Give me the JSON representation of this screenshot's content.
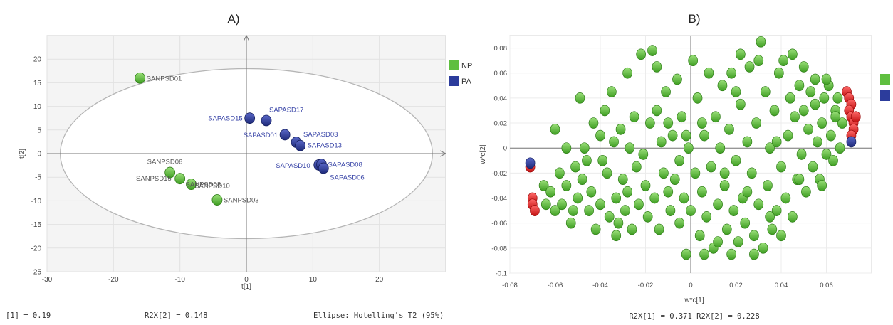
{
  "panels": {
    "a": {
      "label": "A)",
      "footer_left": "[1] = 0.19",
      "footer_mid": "R2X[2] = 0.148",
      "footer_right": "Ellipse: Hotelling's T2 (95%)"
    },
    "b": {
      "label": "B)",
      "footer": "R2X[1] = 0.371 R2X[2] = 0.228"
    }
  },
  "chart_data": [
    {
      "type": "scatter",
      "title": "",
      "xlabel": "t[1]",
      "ylabel": "t[2]",
      "xlim": [
        -30,
        30
      ],
      "ylim": [
        -25,
        25
      ],
      "xticks": [
        -30,
        -20,
        -10,
        0,
        10,
        20
      ],
      "yticks": [
        -25,
        -20,
        -15,
        -10,
        -5,
        0,
        5,
        10,
        15,
        20
      ],
      "x_tick_labels": [
        "-30",
        "-20",
        "-10",
        "0",
        "10",
        "20"
      ],
      "y_tick_labels": [
        "-25",
        "-20",
        "-15",
        "-10",
        "-5",
        "0",
        "5",
        "10",
        "15",
        "20"
      ],
      "grid": true,
      "legend_position": "top-right",
      "ellipse": {
        "center": [
          0,
          0
        ],
        "semi_axis_x": 28,
        "semi_axis_y": 18
      },
      "series": [
        {
          "name": "NP",
          "color": "#5fbf3f",
          "points": [
            {
              "x": -16,
              "y": 16,
              "label": "SANPSD01"
            },
            {
              "x": -11.5,
              "y": -4,
              "label": "SANPSD06"
            },
            {
              "x": -10,
              "y": -5.3,
              "label": "SANPSD15"
            },
            {
              "x": -8.3,
              "y": -6.5,
              "label": "SANPSD08"
            },
            {
              "x": -4.4,
              "y": -9.8,
              "label": "SANPSD03"
            }
          ]
        },
        {
          "name": "PA",
          "color": "#2c3c9c",
          "points": [
            {
              "x": 0.5,
              "y": 7.5,
              "label": "SAPASD15"
            },
            {
              "x": 3,
              "y": 7,
              "label": "SAPASD17"
            },
            {
              "x": 5.8,
              "y": 4,
              "label": "SAPASD01"
            },
            {
              "x": 7.5,
              "y": 2.4,
              "label": "SAPASD03"
            },
            {
              "x": 8.1,
              "y": 1.7,
              "label": "SAPASD13"
            },
            {
              "x": 10.9,
              "y": -2.4,
              "label": "SAPASD10"
            },
            {
              "x": 11.3,
              "y": -2.3,
              "label": "SAPASD08"
            },
            {
              "x": 11.6,
              "y": -3.1,
              "label": "SAPASD06"
            }
          ]
        }
      ],
      "extra_labels": [
        {
          "text": "SANPSD10",
          "x": -7.8,
          "y": -5.5
        }
      ]
    },
    {
      "type": "scatter",
      "title": "",
      "xlabel": "w*c[1]",
      "ylabel": "w*c[2]",
      "xlim": [
        -0.08,
        0.08
      ],
      "ylim": [
        -0.1,
        0.09
      ],
      "xticks": [
        -0.08,
        -0.06,
        -0.04,
        -0.02,
        0,
        0.02,
        0.04,
        0.06
      ],
      "yticks": [
        -0.1,
        -0.08,
        -0.06,
        -0.04,
        -0.02,
        0,
        0.02,
        0.04,
        0.06,
        0.08
      ],
      "x_tick_labels": [
        "-0.08",
        "-0.06",
        "-0.04",
        "-0.02",
        "0",
        "0.02",
        "0.04",
        "0.06"
      ],
      "y_tick_labels": [
        "-0.1",
        "-0.08",
        "-0.06",
        "-0.04",
        "-0.02",
        "0",
        "0.02",
        "0.04",
        "0.06",
        "0.08"
      ],
      "grid": true,
      "legend_position": "top-right",
      "legend_swatches": [
        "#5fbf3f",
        "#2c3c9c"
      ],
      "series": [
        {
          "name": "",
          "color": "#5fbf3f",
          "points": [
            [
              -0.065,
              -0.03
            ],
            [
              -0.064,
              -0.045
            ],
            [
              -0.062,
              -0.035
            ],
            [
              -0.06,
              -0.05
            ],
            [
              -0.058,
              -0.02
            ],
            [
              -0.057,
              -0.045
            ],
            [
              -0.055,
              -0.03
            ],
            [
              -0.055,
              0.0
            ],
            [
              -0.052,
              -0.05
            ],
            [
              -0.051,
              -0.015
            ],
            [
              -0.05,
              -0.04
            ],
            [
              -0.049,
              0.04
            ],
            [
              -0.048,
              -0.025
            ],
            [
              -0.047,
              0.0
            ],
            [
              -0.045,
              -0.05
            ],
            [
              -0.044,
              -0.035
            ],
            [
              -0.043,
              0.02
            ],
            [
              -0.042,
              -0.065
            ],
            [
              -0.04,
              -0.045
            ],
            [
              -0.039,
              -0.01
            ],
            [
              -0.038,
              0.03
            ],
            [
              -0.037,
              -0.02
            ],
            [
              -0.036,
              -0.055
            ],
            [
              -0.034,
              0.005
            ],
            [
              -0.033,
              -0.04
            ],
            [
              -0.032,
              -0.06
            ],
            [
              -0.031,
              0.015
            ],
            [
              -0.03,
              -0.025
            ],
            [
              -0.029,
              -0.05
            ],
            [
              -0.028,
              -0.035
            ],
            [
              -0.027,
              0.0
            ],
            [
              -0.026,
              -0.065
            ],
            [
              -0.025,
              0.025
            ],
            [
              -0.024,
              -0.015
            ],
            [
              -0.023,
              -0.045
            ],
            [
              -0.022,
              0.075
            ],
            [
              -0.021,
              -0.005
            ],
            [
              -0.02,
              -0.03
            ],
            [
              -0.019,
              -0.055
            ],
            [
              -0.018,
              0.02
            ],
            [
              -0.017,
              0.078
            ],
            [
              -0.016,
              -0.04
            ],
            [
              -0.015,
              0.03
            ],
            [
              -0.014,
              -0.065
            ],
            [
              -0.013,
              0.005
            ],
            [
              -0.012,
              -0.02
            ],
            [
              -0.011,
              0.045
            ],
            [
              -0.01,
              -0.035
            ],
            [
              -0.009,
              -0.05
            ],
            [
              -0.008,
              0.01
            ],
            [
              -0.007,
              -0.025
            ],
            [
              -0.006,
              0.055
            ],
            [
              -0.005,
              -0.01
            ],
            [
              -0.005,
              -0.06
            ],
            [
              -0.004,
              0.025
            ],
            [
              -0.003,
              -0.04
            ],
            [
              -0.002,
              -0.085
            ],
            [
              -0.001,
              0.0
            ],
            [
              0.0,
              -0.05
            ],
            [
              0.001,
              0.07
            ],
            [
              0.002,
              -0.02
            ],
            [
              0.003,
              0.04
            ],
            [
              0.004,
              -0.07
            ],
            [
              0.005,
              -0.035
            ],
            [
              0.006,
              0.01
            ],
            [
              0.007,
              -0.055
            ],
            [
              0.008,
              0.06
            ],
            [
              0.009,
              -0.015
            ],
            [
              0.01,
              -0.08
            ],
            [
              0.011,
              0.025
            ],
            [
              0.012,
              -0.045
            ],
            [
              0.013,
              0.0
            ],
            [
              0.014,
              0.05
            ],
            [
              0.015,
              -0.03
            ],
            [
              0.016,
              -0.065
            ],
            [
              0.017,
              0.015
            ],
            [
              0.018,
              0.06
            ],
            [
              0.019,
              -0.05
            ],
            [
              0.02,
              -0.01
            ],
            [
              0.021,
              -0.075
            ],
            [
              0.022,
              0.035
            ],
            [
              0.023,
              -0.04
            ],
            [
              0.024,
              -0.06
            ],
            [
              0.025,
              0.005
            ],
            [
              0.026,
              0.065
            ],
            [
              0.027,
              -0.02
            ],
            [
              0.028,
              -0.07
            ],
            [
              0.029,
              0.02
            ],
            [
              0.03,
              -0.045
            ],
            [
              0.031,
              0.085
            ],
            [
              0.032,
              -0.08
            ],
            [
              0.033,
              0.045
            ],
            [
              0.034,
              -0.03
            ],
            [
              0.035,
              0.0
            ],
            [
              0.036,
              -0.065
            ],
            [
              0.037,
              0.03
            ],
            [
              0.038,
              -0.05
            ],
            [
              0.039,
              0.06
            ],
            [
              0.04,
              -0.015
            ],
            [
              0.041,
              0.07
            ],
            [
              0.042,
              -0.04
            ],
            [
              0.043,
              0.01
            ],
            [
              0.044,
              0.04
            ],
            [
              0.045,
              -0.055
            ],
            [
              0.046,
              0.025
            ],
            [
              0.047,
              -0.025
            ],
            [
              0.048,
              0.05
            ],
            [
              0.049,
              -0.005
            ],
            [
              0.05,
              0.03
            ],
            [
              0.051,
              -0.035
            ],
            [
              0.052,
              0.015
            ],
            [
              0.053,
              0.045
            ],
            [
              0.054,
              -0.015
            ],
            [
              0.055,
              0.035
            ],
            [
              0.056,
              0.005
            ],
            [
              0.057,
              -0.025
            ],
            [
              0.058,
              0.02
            ],
            [
              0.059,
              0.04
            ],
            [
              0.06,
              -0.005
            ],
            [
              0.061,
              0.05
            ],
            [
              0.062,
              0.01
            ],
            [
              0.063,
              -0.01
            ],
            [
              0.064,
              0.03
            ],
            [
              0.065,
              0.04
            ],
            [
              0.066,
              0.0
            ],
            [
              0.067,
              0.02
            ],
            [
              -0.06,
              0.015
            ],
            [
              -0.046,
              -0.01
            ],
            [
              -0.035,
              0.045
            ],
            [
              -0.015,
              0.065
            ],
            [
              0.005,
              0.02
            ],
            [
              0.02,
              0.045
            ],
            [
              0.03,
              0.07
            ],
            [
              0.045,
              0.075
            ],
            [
              0.055,
              0.055
            ],
            [
              0.06,
              0.055
            ],
            [
              -0.01,
              0.02
            ],
            [
              0.015,
              -0.02
            ],
            [
              0.025,
              -0.035
            ],
            [
              0.035,
              -0.055
            ],
            [
              0.04,
              -0.07
            ],
            [
              0.028,
              -0.085
            ],
            [
              0.018,
              -0.085
            ],
            [
              0.012,
              -0.075
            ],
            [
              0.006,
              -0.085
            ],
            [
              0.038,
              0.005
            ],
            [
              0.048,
              -0.025
            ],
            [
              0.058,
              -0.03
            ],
            [
              -0.028,
              0.06
            ],
            [
              -0.04,
              0.01
            ],
            [
              -0.053,
              -0.06
            ],
            [
              -0.033,
              -0.07
            ],
            [
              0.022,
              0.075
            ],
            [
              0.05,
              0.065
            ],
            [
              0.064,
              0.025
            ],
            [
              -0.002,
              0.01
            ]
          ]
        },
        {
          "name": "",
          "color": "#e02020",
          "points": [
            [
              -0.07,
              -0.04
            ],
            [
              -0.07,
              -0.045
            ],
            [
              -0.069,
              -0.05
            ],
            [
              -0.071,
              -0.015
            ],
            [
              0.069,
              0.045
            ],
            [
              0.07,
              0.04
            ],
            [
              0.071,
              0.035
            ],
            [
              0.07,
              0.03
            ],
            [
              0.071,
              0.025
            ],
            [
              0.072,
              0.02
            ],
            [
              0.073,
              0.025
            ],
            [
              0.072,
              0.015
            ],
            [
              0.071,
              0.01
            ]
          ]
        },
        {
          "name": "",
          "color": "#2c3c9c",
          "points": [
            [
              -0.071,
              -0.012
            ],
            [
              0.071,
              0.005
            ]
          ]
        }
      ]
    }
  ]
}
